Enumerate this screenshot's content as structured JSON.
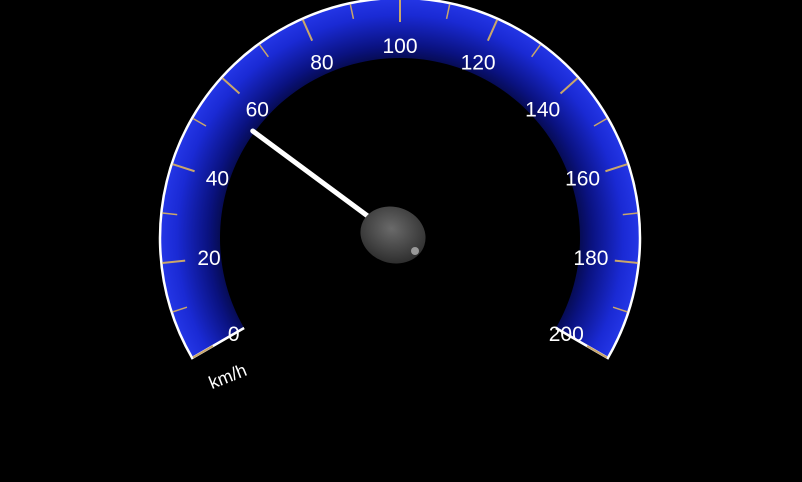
{
  "gauge": {
    "unit": "km/h",
    "min": 0,
    "max": 200,
    "current_value": 55,
    "tick_labels": [
      "0",
      "20",
      "40",
      "60",
      "80",
      "100",
      "120",
      "140",
      "160",
      "180",
      "200"
    ],
    "minor_ticks_per_major": 1,
    "colors": {
      "band_outer": "#1b2bd8",
      "band_inner": "#000000",
      "rim": "#ffffff",
      "tick": "#c9a66b",
      "needle": "#ffffff",
      "hub": "#4a4a4a",
      "background": "#000000"
    }
  }
}
